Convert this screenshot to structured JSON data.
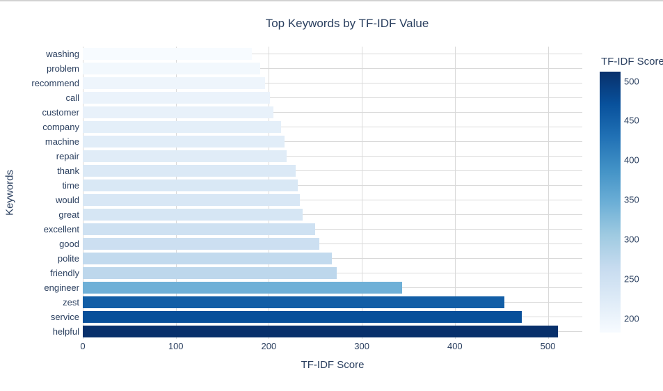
{
  "header": {
    "title": "Top Keywords by TF-IDF Value"
  },
  "axes": {
    "x_title": "TF-IDF Score",
    "y_title": "Keywords",
    "x_ticks": [
      0,
      100,
      200,
      300,
      400,
      500
    ]
  },
  "colorbar": {
    "title": "TF-IDF Score",
    "ticks": [
      500,
      450,
      400,
      350,
      300,
      250,
      200
    ],
    "cmin": 182,
    "cmax": 512,
    "gradient_top_to_bottom": [
      "#08306b",
      "#08519c",
      "#2171b5",
      "#4292c6",
      "#6baed6",
      "#9ecae1",
      "#c6dbef",
      "#deebf7",
      "#f7fbff"
    ]
  },
  "chart_data": {
    "type": "bar",
    "orientation": "horizontal",
    "title": "Top Keywords by TF-IDF Value",
    "xlabel": "TF-IDF Score",
    "ylabel": "Keywords",
    "xlim": [
      0,
      537
    ],
    "grid": true,
    "colorscale": "Blues",
    "color_range": [
      182,
      511
    ],
    "legend_position": "colorbar-right",
    "categories": [
      "washing",
      "problem",
      "recommend",
      "call",
      "customer",
      "company",
      "machine",
      "repair",
      "thank",
      "time",
      "would",
      "great",
      "excellent",
      "good",
      "polite",
      "friendly",
      "engineer",
      "zest",
      "service",
      "helpful"
    ],
    "values": [
      182,
      191,
      196,
      201,
      205,
      213,
      217,
      219,
      229,
      231,
      233,
      236,
      250,
      254,
      268,
      273,
      343,
      453,
      472,
      511
    ],
    "bar_colors": [
      "#f7fbff",
      "#f2f8fd",
      "#eef5fc",
      "#ebf3fb",
      "#e8f1fa",
      "#e4eff9",
      "#e1edf8",
      "#e0ecf7",
      "#dbe9f6",
      "#d9e8f5",
      "#d8e7f5",
      "#d6e6f4",
      "#cee1f2",
      "#ccdff1",
      "#c2daee",
      "#bdd7ec",
      "#6fb0d7",
      "#125ea6",
      "#084f9a",
      "#08306b"
    ]
  },
  "colors": {
    "text": "#2a3f5f",
    "grid": "#d9d9d9",
    "background": "#ffffff"
  }
}
